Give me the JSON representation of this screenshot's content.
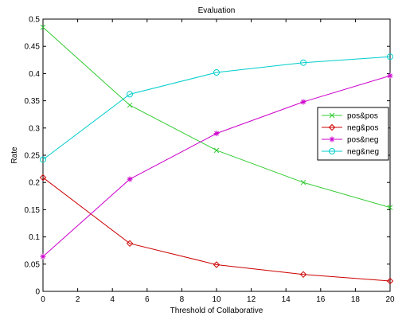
{
  "chart_data": {
    "type": "line",
    "title": "Evaluation",
    "xlabel": "Threshold of Collaborative",
    "ylabel": "Rate",
    "xlim": [
      0,
      20
    ],
    "ylim": [
      0,
      0.5
    ],
    "xticks": [
      0,
      2,
      4,
      6,
      8,
      10,
      12,
      14,
      16,
      18,
      20
    ],
    "yticks": [
      0,
      0.05,
      0.1,
      0.15,
      0.2,
      0.25,
      0.3,
      0.35,
      0.4,
      0.45,
      0.5
    ],
    "grid": false,
    "legend_position": "right",
    "x": [
      0,
      5,
      10,
      15,
      20
    ],
    "series": [
      {
        "name": "pos&pos",
        "color": "#33cc33",
        "marker": "x",
        "values": [
          0.485,
          0.342,
          0.259,
          0.2,
          0.154
        ]
      },
      {
        "name": "neg&pos",
        "color": "#cc0000",
        "marker": "diamond",
        "values": [
          0.209,
          0.088,
          0.049,
          0.031,
          0.019
        ]
      },
      {
        "name": "pos&neg",
        "color": "#cc00cc",
        "marker": "star",
        "values": [
          0.064,
          0.206,
          0.29,
          0.348,
          0.396
        ]
      },
      {
        "name": "neg&neg",
        "color": "#00cccc",
        "marker": "circle",
        "values": [
          0.242,
          0.362,
          0.402,
          0.42,
          0.431
        ]
      }
    ]
  }
}
